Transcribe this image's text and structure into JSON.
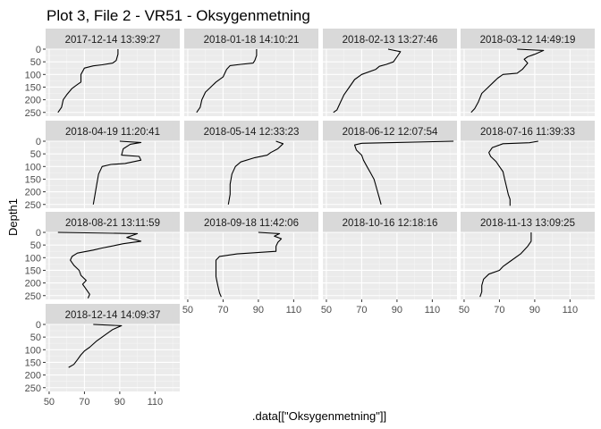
{
  "chart_data": {
    "type": "line",
    "title": "Plot 3, File 2 - VR51  -  Oksygenmetning",
    "xlabel": ".data[[\"Oksygenmetning\"]]",
    "ylabel": "Depth1",
    "xlim": [
      48,
      124
    ],
    "ylim": [
      0,
      265
    ],
    "y_reversed": true,
    "x_ticks": [
      50,
      70,
      90,
      110
    ],
    "y_ticks": [
      0,
      50,
      100,
      150,
      200,
      250
    ],
    "layout": "facet_wrap 4 columns",
    "panels": [
      {
        "label": "2017-12-14 13:39:27",
        "points": [
          [
            89,
            0
          ],
          [
            89,
            20
          ],
          [
            88,
            45
          ],
          [
            86,
            55
          ],
          [
            80,
            62
          ],
          [
            75,
            66
          ],
          [
            70,
            75
          ],
          [
            68,
            100
          ],
          [
            68,
            130
          ],
          [
            66,
            140
          ],
          [
            63,
            155
          ],
          [
            60,
            180
          ],
          [
            58,
            200
          ],
          [
            57,
            230
          ],
          [
            55,
            250
          ]
        ]
      },
      {
        "label": "2018-01-18 14:10:21",
        "points": [
          [
            89,
            0
          ],
          [
            89,
            25
          ],
          [
            88,
            45
          ],
          [
            87,
            55
          ],
          [
            80,
            60
          ],
          [
            74,
            65
          ],
          [
            72,
            80
          ],
          [
            70,
            110
          ],
          [
            66,
            130
          ],
          [
            63,
            150
          ],
          [
            60,
            170
          ],
          [
            58,
            200
          ],
          [
            57,
            230
          ],
          [
            55,
            250
          ]
        ]
      },
      {
        "label": "2018-02-13 13:27:46",
        "points": [
          [
            85,
            0
          ],
          [
            92,
            10
          ],
          [
            90,
            30
          ],
          [
            88,
            50
          ],
          [
            84,
            60
          ],
          [
            80,
            68
          ],
          [
            78,
            80
          ],
          [
            70,
            100
          ],
          [
            66,
            120
          ],
          [
            63,
            150
          ],
          [
            60,
            180
          ],
          [
            58,
            210
          ],
          [
            56,
            240
          ],
          [
            54,
            250
          ]
        ]
      },
      {
        "label": "2018-03-12 14:49:19",
        "points": [
          [
            80,
            0
          ],
          [
            95,
            5
          ],
          [
            90,
            20
          ],
          [
            86,
            30
          ],
          [
            84,
            40
          ],
          [
            86,
            55
          ],
          [
            83,
            80
          ],
          [
            80,
            95
          ],
          [
            72,
            100
          ],
          [
            69,
            115
          ],
          [
            66,
            135
          ],
          [
            63,
            155
          ],
          [
            60,
            175
          ],
          [
            58,
            210
          ],
          [
            56,
            235
          ],
          [
            54,
            250
          ]
        ]
      },
      {
        "label": "2018-04-19 11:20:41",
        "points": [
          [
            90,
            0
          ],
          [
            102,
            5
          ],
          [
            96,
            12
          ],
          [
            92,
            30
          ],
          [
            91,
            55
          ],
          [
            101,
            60
          ],
          [
            102,
            75
          ],
          [
            93,
            88
          ],
          [
            85,
            92
          ],
          [
            80,
            100
          ],
          [
            78,
            130
          ],
          [
            77,
            170
          ],
          [
            76,
            210
          ],
          [
            75,
            250
          ]
        ]
      },
      {
        "label": "2018-05-14 12:33:23",
        "points": [
          [
            100,
            0
          ],
          [
            104,
            10
          ],
          [
            101,
            30
          ],
          [
            97,
            45
          ],
          [
            95,
            55
          ],
          [
            88,
            65
          ],
          [
            80,
            82
          ],
          [
            77,
            100
          ],
          [
            75,
            130
          ],
          [
            74,
            170
          ],
          [
            74,
            210
          ],
          [
            73,
            250
          ]
        ]
      },
      {
        "label": "2018-06-12 12:07:54",
        "points": [
          [
            122,
            0
          ],
          [
            90,
            5
          ],
          [
            70,
            8
          ],
          [
            66,
            15
          ],
          [
            67,
            35
          ],
          [
            70,
            55
          ],
          [
            71,
            75
          ],
          [
            73,
            100
          ],
          [
            75,
            125
          ],
          [
            77,
            150
          ],
          [
            78,
            175
          ],
          [
            79,
            200
          ],
          [
            80,
            225
          ],
          [
            81,
            250
          ]
        ]
      },
      {
        "label": "2018-07-16 11:39:33",
        "points": [
          [
            92,
            0
          ],
          [
            87,
            6
          ],
          [
            72,
            10
          ],
          [
            66,
            25
          ],
          [
            64,
            45
          ],
          [
            65,
            60
          ],
          [
            68,
            80
          ],
          [
            70,
            100
          ],
          [
            72,
            120
          ],
          [
            73,
            150
          ],
          [
            74,
            180
          ],
          [
            75,
            210
          ],
          [
            76,
            230
          ],
          [
            76,
            255
          ]
        ]
      },
      {
        "label": "2018-08-21 13:11:59",
        "points": [
          [
            55,
            0
          ],
          [
            100,
            5
          ],
          [
            94,
            20
          ],
          [
            102,
            35
          ],
          [
            92,
            45
          ],
          [
            85,
            55
          ],
          [
            80,
            62
          ],
          [
            75,
            70
          ],
          [
            66,
            82
          ],
          [
            63,
            95
          ],
          [
            62,
            110
          ],
          [
            64,
            130
          ],
          [
            67,
            150
          ],
          [
            68,
            170
          ],
          [
            71,
            190
          ],
          [
            69,
            205
          ],
          [
            71,
            225
          ],
          [
            73,
            245
          ],
          [
            72,
            260
          ]
        ]
      },
      {
        "label": "2018-09-18 11:42:06",
        "points": [
          [
            90,
            0
          ],
          [
            102,
            5
          ],
          [
            99,
            15
          ],
          [
            103,
            25
          ],
          [
            101,
            40
          ],
          [
            100,
            55
          ],
          [
            100,
            75
          ],
          [
            78,
            85
          ],
          [
            68,
            95
          ],
          [
            66,
            110
          ],
          [
            66,
            140
          ],
          [
            66,
            175
          ],
          [
            67,
            210
          ],
          [
            68,
            240
          ],
          [
            69,
            255
          ]
        ]
      },
      {
        "label": "2018-10-16 12:18:16",
        "points": []
      },
      {
        "label": "2018-11-13 13:09:25",
        "points": [
          [
            88,
            0
          ],
          [
            88,
            15
          ],
          [
            88,
            35
          ],
          [
            86,
            55
          ],
          [
            82,
            85
          ],
          [
            76,
            115
          ],
          [
            72,
            135
          ],
          [
            70,
            150
          ],
          [
            64,
            165
          ],
          [
            61,
            185
          ],
          [
            60,
            210
          ],
          [
            60,
            235
          ],
          [
            59,
            255
          ]
        ]
      },
      {
        "label": "2018-12-14 14:09:37",
        "points": [
          [
            75,
            0
          ],
          [
            91,
            5
          ],
          [
            86,
            20
          ],
          [
            82,
            40
          ],
          [
            77,
            65
          ],
          [
            73,
            90
          ],
          [
            70,
            105
          ],
          [
            68,
            120
          ],
          [
            66,
            140
          ],
          [
            64,
            158
          ],
          [
            61,
            170
          ]
        ]
      }
    ]
  }
}
